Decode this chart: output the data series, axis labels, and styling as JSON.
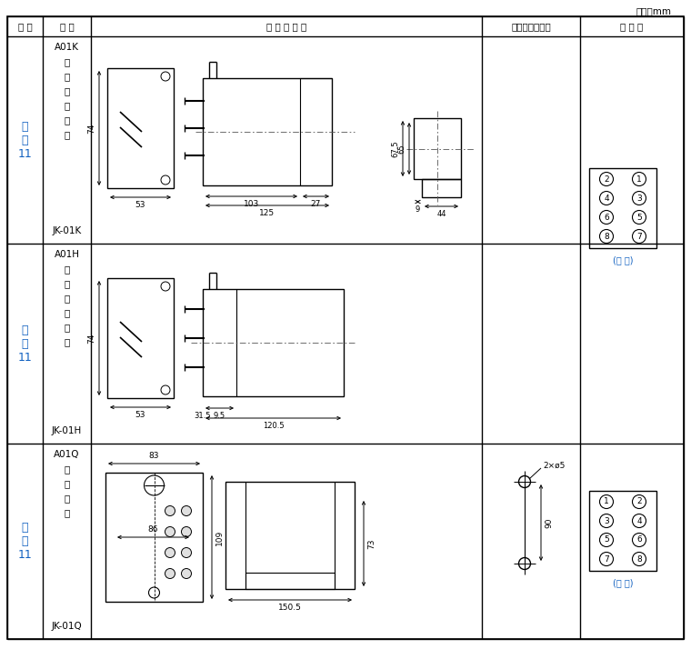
{
  "unit_text": "单位：mm",
  "col_headers": [
    "图 号",
    "结 构",
    "外 形 尺 寸 图",
    "安装开孔尺寸图",
    "端 子 图"
  ],
  "bg_color": "#ffffff",
  "line_color": "#000000",
  "text_color": "#000000",
  "blue_color": "#1060c0",
  "orange_color": "#c05010",
  "C0": 8,
  "C1": 47,
  "C2": 100,
  "C3": 530,
  "C4": 638,
  "C5": 752,
  "R0": 18,
  "R1": 40,
  "R2": 268,
  "R3": 488,
  "R4": 703
}
